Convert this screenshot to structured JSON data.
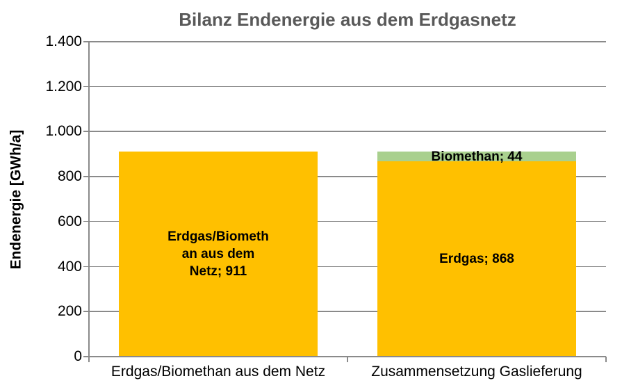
{
  "chart_data": {
    "type": "bar",
    "subtype": "stacked-column",
    "title": "Bilanz Endenergie aus dem Erdgasnetz",
    "xlabel": "",
    "ylabel": "Endenergie [GWh/a]",
    "ylim": [
      0,
      1400
    ],
    "ytick_step": 200,
    "ytick_labels": [
      "0",
      "200",
      "400",
      "600",
      "800",
      "1.000",
      "1.200",
      "1.400"
    ],
    "grid": true,
    "legend_position": "none",
    "categories": [
      "Erdgas/Biomethan aus dem Netz",
      "Zusammensetzung Gaslieferung"
    ],
    "bars": [
      {
        "category": "Erdgas/Biomethan aus dem Netz",
        "segments": [
          {
            "name": "erdgas-biomethan-aus-dem-netz",
            "value": 911,
            "color": "#FFC000",
            "label": "Erdgas/Biometh\nan aus dem\nNetz; 911"
          }
        ]
      },
      {
        "category": "Zusammensetzung Gaslieferung",
        "segments": [
          {
            "name": "erdgas",
            "value": 868,
            "color": "#FFC000",
            "label": "Erdgas; 868"
          },
          {
            "name": "biomethan",
            "value": 44,
            "color": "#A9D08E",
            "label": "Biomethan; 44"
          }
        ]
      }
    ],
    "colors": {
      "erdgas": "#FFC000",
      "biomethan": "#A9D08E",
      "title_text": "#595959",
      "axis_and_grid": "#8A8A8A",
      "label_text": "#000000",
      "background": "#FFFFFF"
    }
  }
}
